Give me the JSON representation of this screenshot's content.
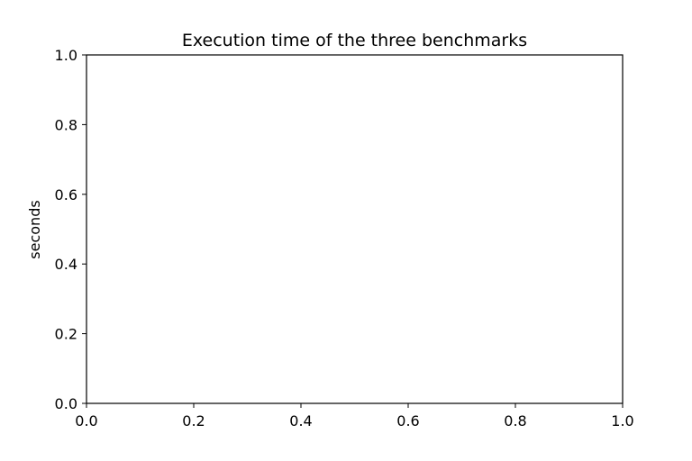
{
  "chart_data": {
    "type": "line",
    "title": "Execution time of the three benchmarks",
    "xlabel": "",
    "ylabel": "seconds",
    "xlim": [
      0.0,
      1.0
    ],
    "ylim": [
      0.0,
      1.0
    ],
    "xticks": [
      0.0,
      0.2,
      0.4,
      0.6,
      0.8,
      1.0
    ],
    "yticks": [
      0.0,
      0.2,
      0.4,
      0.6,
      0.8,
      1.0
    ],
    "xtick_labels": [
      "0.0",
      "0.2",
      "0.4",
      "0.6",
      "0.8",
      "1.0"
    ],
    "ytick_labels": [
      "0.0",
      "0.2",
      "0.4",
      "0.6",
      "0.8",
      "1.0"
    ],
    "series": [],
    "grid": false,
    "legend": "none"
  }
}
